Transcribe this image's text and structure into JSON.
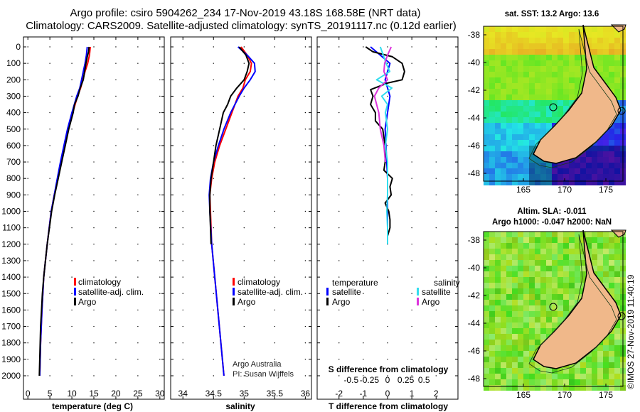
{
  "title": {
    "line1": "Argo profile: csiro 5904262_234 17-Nov-2019 43.18S 168.58E (NRT data)",
    "line2": "Climatology: CARS2009. Satellite-adjusted climatology: synTS_20191117.nc (0.12d earlier)"
  },
  "depth_ticks": [
    0,
    100,
    200,
    300,
    400,
    500,
    600,
    700,
    800,
    900,
    1000,
    1100,
    1200,
    1300,
    1400,
    1500,
    1600,
    1700,
    1800,
    1900,
    2000
  ],
  "colors": {
    "climatology": "#ff0000",
    "satellite": "#0000ff",
    "argo": "#000000",
    "sat_salinity": "#33ddee",
    "argo_salinity": "#dd33dd"
  },
  "chart_data": [
    {
      "type": "line",
      "name": "temperature-panel",
      "xlabel": "temperature (deg C)",
      "ylabel": "depth",
      "xlim": [
        -1,
        31
      ],
      "ylim": [
        0,
        2050
      ],
      "xticks": [
        0,
        5,
        10,
        15,
        20,
        25,
        30
      ],
      "legend": [
        "climatology",
        "satellite-adj. clim.",
        "Argo"
      ],
      "series": [
        {
          "name": "climatology",
          "color": "#ff0000",
          "depth": [
            0,
            50,
            100,
            150,
            200,
            250,
            300,
            400,
            500,
            600,
            700,
            800,
            900,
            1000,
            1200,
            1400,
            1600,
            1800,
            2000
          ],
          "values": [
            14.2,
            14.0,
            13.6,
            13.0,
            12.5,
            12.0,
            11.3,
            10.2,
            9.2,
            8.4,
            7.6,
            6.8,
            6.0,
            5.3,
            4.4,
            3.6,
            3.2,
            2.9,
            2.7
          ]
        },
        {
          "name": "satellite-adj. clim.",
          "color": "#0000ff",
          "depth": [
            0,
            50,
            100,
            150,
            200,
            250,
            300,
            400,
            500,
            600,
            700,
            800,
            900,
            1000,
            1200,
            1400,
            1600,
            1800,
            2000
          ],
          "values": [
            13.5,
            13.3,
            13.0,
            12.6,
            12.2,
            11.8,
            11.1,
            10.0,
            9.0,
            8.2,
            7.4,
            6.7,
            6.0,
            5.3,
            4.4,
            3.6,
            3.2,
            2.9,
            2.7
          ]
        },
        {
          "name": "Argo",
          "color": "#000000",
          "depth": [
            0,
            30,
            60,
            100,
            150,
            200,
            250,
            300,
            350,
            400,
            500,
            600,
            700,
            800,
            900,
            1000,
            1100,
            1200,
            1300,
            1400,
            1500,
            1600,
            1700,
            1800,
            1900,
            2000
          ],
          "values": [
            13.9,
            13.8,
            13.5,
            13.2,
            12.9,
            12.6,
            11.9,
            11.4,
            10.6,
            10.3,
            9.3,
            8.5,
            7.7,
            6.9,
            6.1,
            5.4,
            4.9,
            4.4,
            4.0,
            3.6,
            3.3,
            3.1,
            2.9,
            2.8,
            2.7,
            2.6
          ]
        }
      ]
    },
    {
      "type": "line",
      "name": "salinity-panel",
      "xlabel": "salinity",
      "ylabel": "depth",
      "xlim": [
        33.8,
        36.1
      ],
      "ylim": [
        0,
        2050
      ],
      "xticks": [
        34,
        34.5,
        35,
        35.5,
        36
      ],
      "xticklabels": [
        "34",
        "34.5",
        "35",
        "35.5",
        "36"
      ],
      "legend": [
        "climatology",
        "satellite-adj. clim.",
        "Argo"
      ],
      "credit": [
        "Argo Australia",
        "PI: Susan Wijffels"
      ],
      "series": [
        {
          "name": "climatology",
          "color": "#ff0000",
          "depth": [
            0,
            50,
            100,
            150,
            200,
            250,
            300,
            400,
            500,
            600,
            700,
            800,
            900,
            1000,
            1200,
            1400,
            1600,
            1800,
            2000
          ],
          "values": [
            34.95,
            35.05,
            35.12,
            35.1,
            35.02,
            34.98,
            34.9,
            34.8,
            34.7,
            34.6,
            34.52,
            34.47,
            34.44,
            34.45,
            34.47,
            34.52,
            34.57,
            34.62,
            34.67
          ]
        },
        {
          "name": "satellite-adj. clim.",
          "color": "#0000ff",
          "depth": [
            0,
            50,
            100,
            150,
            200,
            250,
            300,
            400,
            500,
            600,
            700,
            800,
            900,
            1000,
            1200,
            1400,
            1600,
            1800,
            2000
          ],
          "values": [
            34.9,
            35.05,
            35.17,
            35.18,
            35.1,
            35.0,
            34.92,
            34.78,
            34.67,
            34.58,
            34.5,
            34.45,
            34.43,
            34.44,
            34.47,
            34.52,
            34.57,
            34.62,
            34.67
          ]
        },
        {
          "name": "Argo",
          "color": "#000000",
          "depth": [
            0,
            50,
            100,
            150,
            200,
            250,
            300,
            350,
            400,
            500,
            600,
            700,
            800,
            900,
            1000,
            1100,
            1200
          ],
          "values": [
            34.92,
            35.03,
            35.08,
            35.05,
            35.0,
            34.88,
            34.78,
            34.73,
            34.66,
            34.6,
            34.54,
            34.5,
            34.46,
            34.44,
            34.44,
            34.45,
            34.46
          ]
        }
      ]
    },
    {
      "type": "line",
      "name": "difference-panel",
      "xlabel": "T difference from climatology",
      "xlabel2": "S difference from climatology",
      "xlim": [
        -2.9,
        2.9
      ],
      "ylim": [
        0,
        2050
      ],
      "xticks": [
        -2,
        -1,
        0,
        1,
        2
      ],
      "sticks": [
        -0.5,
        -0.25,
        0,
        0.25,
        0.5
      ],
      "sticklabels": [
        "-0.5",
        "-0.25",
        "0",
        "0.25",
        "0.5"
      ],
      "legend_titles": {
        "temperature": "temperature",
        "salinity": "salinity"
      },
      "legend_t": [
        "satellite",
        "Argo"
      ],
      "legend_s": [
        "satellite",
        "Argo"
      ],
      "series": [
        {
          "name": "T satellite",
          "color": "#0000ff",
          "depth": [
            0,
            50,
            100,
            150,
            200,
            300,
            500,
            800,
            1000,
            1200
          ],
          "values": [
            -0.7,
            -0.3,
            0.1,
            0.0,
            -0.1,
            0.1,
            -0.1,
            0.0,
            0.0,
            0.0
          ]
        },
        {
          "name": "T Argo",
          "color": "#000000",
          "depth": [
            0,
            30,
            60,
            100,
            150,
            200,
            220,
            260,
            300,
            350,
            400,
            450,
            500,
            600,
            700,
            750,
            800,
            850,
            900,
            950,
            1000,
            1050,
            1100,
            1150,
            1200
          ],
          "values": [
            -0.9,
            -0.6,
            0.2,
            0.6,
            0.7,
            0.6,
            0.0,
            -0.7,
            -0.6,
            -0.7,
            -0.5,
            -0.5,
            -0.2,
            -0.1,
            -0.1,
            -0.15,
            0.2,
            0.1,
            0.15,
            -0.1,
            0.05,
            0.1,
            0.1,
            0.0,
            0.0
          ]
        },
        {
          "name": "S satellite",
          "color": "#33ddee",
          "depth": [
            0,
            100,
            150,
            200,
            250,
            300,
            350,
            400,
            500,
            600,
            700,
            800,
            900,
            1000,
            1100,
            1200
          ],
          "values": [
            -0.1,
            -0.02,
            0.03,
            -0.15,
            0.06,
            -0.08,
            0.0,
            -0.03,
            0.0,
            -0.03,
            0.0,
            0.0,
            0.0,
            -0.01,
            0.0,
            0.0
          ]
        },
        {
          "name": "S Argo",
          "color": "#dd33dd",
          "depth": [
            0,
            50,
            100,
            150,
            200,
            250,
            300,
            350,
            400,
            500,
            600,
            700
          ],
          "values": [
            0.05,
            0.0,
            -0.04,
            -0.05,
            0.0,
            -0.12,
            -0.18,
            -0.15,
            -0.12,
            -0.1,
            -0.05,
            -0.03
          ]
        }
      ]
    }
  ],
  "maps": [
    {
      "name": "sst-map",
      "title": "sat. SST: 13.2 Argo: 13.6",
      "lat_ticks": [
        "-38",
        "-40",
        "-42",
        "-44",
        "-46",
        "-48"
      ],
      "lon_ticks": [
        "165",
        "170",
        "175"
      ]
    },
    {
      "name": "sla-map",
      "title": "Altim. SLA: -0.011",
      "title2": "Argo h1000: -0.047 h2000: NaN",
      "lat_ticks": [
        "-38",
        "-40",
        "-42",
        "-44",
        "-46",
        "-48"
      ],
      "lon_ticks": [
        "165",
        "170",
        "175"
      ]
    }
  ],
  "side_credit": "©IMOS 27-Nov-2019 11:40:19"
}
